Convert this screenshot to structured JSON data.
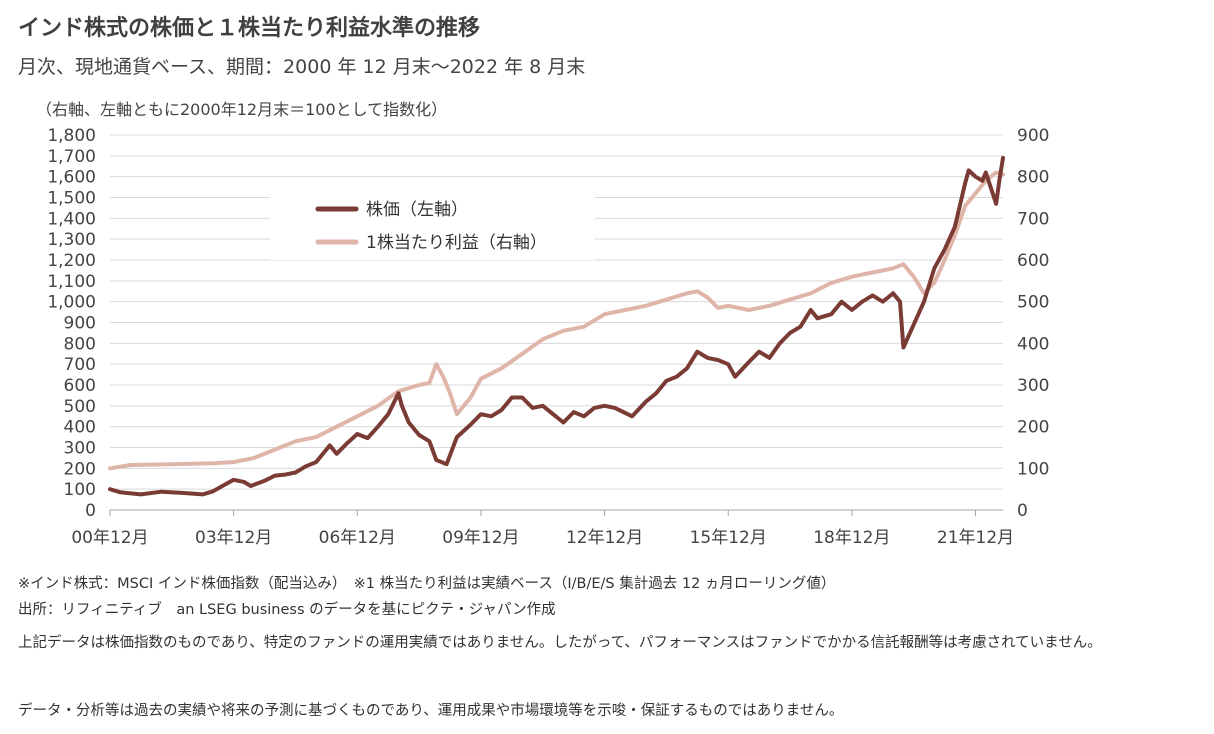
{
  "header": {
    "title": "インド株式の株価と１株当たり利益水準の推移",
    "subtitle": "月次、現地通貨ベース、期間：2000 年 12 月末～2022 年 8 月末"
  },
  "chart_data": {
    "type": "line",
    "note": "（右軸、左軸ともに2000年12月末＝100として指数化）",
    "x_tick_labels": [
      "00年12月",
      "03年12月",
      "06年12月",
      "09年12月",
      "12年12月",
      "15年12月",
      "18年12月",
      "21年12月"
    ],
    "x_range": [
      "2000-12",
      "2022-08"
    ],
    "y_left": {
      "range": [
        0,
        1800
      ],
      "ticks": [
        "0",
        "100",
        "200",
        "300",
        "400",
        "500",
        "600",
        "700",
        "800",
        "900",
        "1,000",
        "1,100",
        "1,200",
        "1,300",
        "1,400",
        "1,500",
        "1,600",
        "1,700",
        "1,800"
      ]
    },
    "y_right": {
      "range": [
        0,
        900
      ],
      "ticks": [
        "0",
        "100",
        "200",
        "300",
        "400",
        "500",
        "600",
        "700",
        "800",
        "900"
      ]
    },
    "grid": "horizontal",
    "legend_position": "upper-left",
    "series": [
      {
        "name": "株価（左軸）",
        "axis": "left",
        "color": "#7b3b35",
        "points": [
          [
            "2000-12",
            100
          ],
          [
            "2001-03",
            85
          ],
          [
            "2001-09",
            75
          ],
          [
            "2002-03",
            88
          ],
          [
            "2002-09",
            82
          ],
          [
            "2003-03",
            75
          ],
          [
            "2003-06",
            90
          ],
          [
            "2003-12",
            145
          ],
          [
            "2004-03",
            135
          ],
          [
            "2004-05",
            115
          ],
          [
            "2004-09",
            140
          ],
          [
            "2004-12",
            165
          ],
          [
            "2005-03",
            170
          ],
          [
            "2005-06",
            180
          ],
          [
            "2005-09",
            210
          ],
          [
            "2005-12",
            230
          ],
          [
            "2006-04",
            310
          ],
          [
            "2006-06",
            270
          ],
          [
            "2006-09",
            320
          ],
          [
            "2006-12",
            365
          ],
          [
            "2007-03",
            345
          ],
          [
            "2007-06",
            400
          ],
          [
            "2007-09",
            460
          ],
          [
            "2007-12",
            560
          ],
          [
            "2008-01",
            500
          ],
          [
            "2008-03",
            420
          ],
          [
            "2008-06",
            360
          ],
          [
            "2008-09",
            330
          ],
          [
            "2008-11",
            240
          ],
          [
            "2009-02",
            220
          ],
          [
            "2009-05",
            350
          ],
          [
            "2009-09",
            410
          ],
          [
            "2009-12",
            460
          ],
          [
            "2010-03",
            450
          ],
          [
            "2010-06",
            480
          ],
          [
            "2010-09",
            540
          ],
          [
            "2010-12",
            540
          ],
          [
            "2011-03",
            490
          ],
          [
            "2011-06",
            500
          ],
          [
            "2011-09",
            460
          ],
          [
            "2011-12",
            420
          ],
          [
            "2012-03",
            470
          ],
          [
            "2012-06",
            450
          ],
          [
            "2012-09",
            490
          ],
          [
            "2012-12",
            500
          ],
          [
            "2013-03",
            490
          ],
          [
            "2013-08",
            450
          ],
          [
            "2013-12",
            520
          ],
          [
            "2014-03",
            560
          ],
          [
            "2014-06",
            620
          ],
          [
            "2014-09",
            640
          ],
          [
            "2014-12",
            680
          ],
          [
            "2015-03",
            760
          ],
          [
            "2015-06",
            730
          ],
          [
            "2015-09",
            720
          ],
          [
            "2015-12",
            700
          ],
          [
            "2016-02",
            640
          ],
          [
            "2016-06",
            710
          ],
          [
            "2016-09",
            760
          ],
          [
            "2016-12",
            730
          ],
          [
            "2017-03",
            800
          ],
          [
            "2017-06",
            850
          ],
          [
            "2017-09",
            880
          ],
          [
            "2017-12",
            960
          ],
          [
            "2018-02",
            920
          ],
          [
            "2018-06",
            940
          ],
          [
            "2018-09",
            1000
          ],
          [
            "2018-12",
            960
          ],
          [
            "2019-03",
            1000
          ],
          [
            "2019-06",
            1030
          ],
          [
            "2019-09",
            1000
          ],
          [
            "2019-12",
            1040
          ],
          [
            "2020-02",
            1000
          ],
          [
            "2020-03",
            780
          ],
          [
            "2020-06",
            890
          ],
          [
            "2020-09",
            1000
          ],
          [
            "2020-12",
            1160
          ],
          [
            "2021-03",
            1250
          ],
          [
            "2021-06",
            1360
          ],
          [
            "2021-09",
            1570
          ],
          [
            "2021-10",
            1630
          ],
          [
            "2021-12",
            1600
          ],
          [
            "2022-02",
            1580
          ],
          [
            "2022-03",
            1620
          ],
          [
            "2022-06",
            1470
          ],
          [
            "2022-07",
            1590
          ],
          [
            "2022-08",
            1690
          ]
        ]
      },
      {
        "name": "1株当たり利益（右軸）",
        "axis": "right",
        "color": "#dfb5a9",
        "points": [
          [
            "2000-12",
            100
          ],
          [
            "2001-06",
            108
          ],
          [
            "2002-06",
            110
          ],
          [
            "2003-06",
            112
          ],
          [
            "2003-12",
            115
          ],
          [
            "2004-06",
            125
          ],
          [
            "2004-12",
            145
          ],
          [
            "2005-06",
            165
          ],
          [
            "2005-12",
            175
          ],
          [
            "2006-06",
            200
          ],
          [
            "2006-12",
            225
          ],
          [
            "2007-06",
            250
          ],
          [
            "2007-12",
            285
          ],
          [
            "2008-06",
            300
          ],
          [
            "2008-09",
            305
          ],
          [
            "2008-11",
            350
          ],
          [
            "2009-01",
            320
          ],
          [
            "2009-03",
            280
          ],
          [
            "2009-05",
            230
          ],
          [
            "2009-09",
            270
          ],
          [
            "2009-12",
            315
          ],
          [
            "2010-06",
            340
          ],
          [
            "2010-12",
            375
          ],
          [
            "2011-06",
            410
          ],
          [
            "2011-12",
            430
          ],
          [
            "2012-06",
            440
          ],
          [
            "2012-12",
            470
          ],
          [
            "2013-06",
            480
          ],
          [
            "2013-12",
            490
          ],
          [
            "2014-06",
            505
          ],
          [
            "2014-12",
            520
          ],
          [
            "2015-03",
            525
          ],
          [
            "2015-06",
            510
          ],
          [
            "2015-09",
            485
          ],
          [
            "2015-12",
            490
          ],
          [
            "2016-06",
            480
          ],
          [
            "2016-12",
            490
          ],
          [
            "2017-06",
            505
          ],
          [
            "2017-12",
            520
          ],
          [
            "2018-06",
            545
          ],
          [
            "2018-12",
            560
          ],
          [
            "2019-06",
            570
          ],
          [
            "2019-12",
            580
          ],
          [
            "2020-03",
            590
          ],
          [
            "2020-06",
            560
          ],
          [
            "2020-09",
            520
          ],
          [
            "2020-12",
            545
          ],
          [
            "2021-03",
            600
          ],
          [
            "2021-06",
            660
          ],
          [
            "2021-09",
            730
          ],
          [
            "2021-12",
            760
          ],
          [
            "2022-03",
            790
          ],
          [
            "2022-06",
            810
          ],
          [
            "2022-08",
            805
          ]
        ]
      }
    ]
  },
  "footnotes": {
    "source_note": "※インド株式：MSCI インド株価指数（配当込み）　※1 株当たり利益は実績ベース（I/B/E/S 集計過去 12 ヵ月ローリング値）",
    "source": "出所：リフィニティブ　an LSEG business のデータを基にピクテ・ジャパン作成",
    "disclaimer1": "上記データは株価指数のものであり、特定のファンドの運用実績ではありません。したがって、パフォーマンスはファンドでかかる信託報酬等は考慮されていません。",
    "disclaimer2": "データ・分析等は過去の実績や将来の予測に基づくものであり、運用成果や市場環境等を示唆・保証するものではありません。"
  }
}
